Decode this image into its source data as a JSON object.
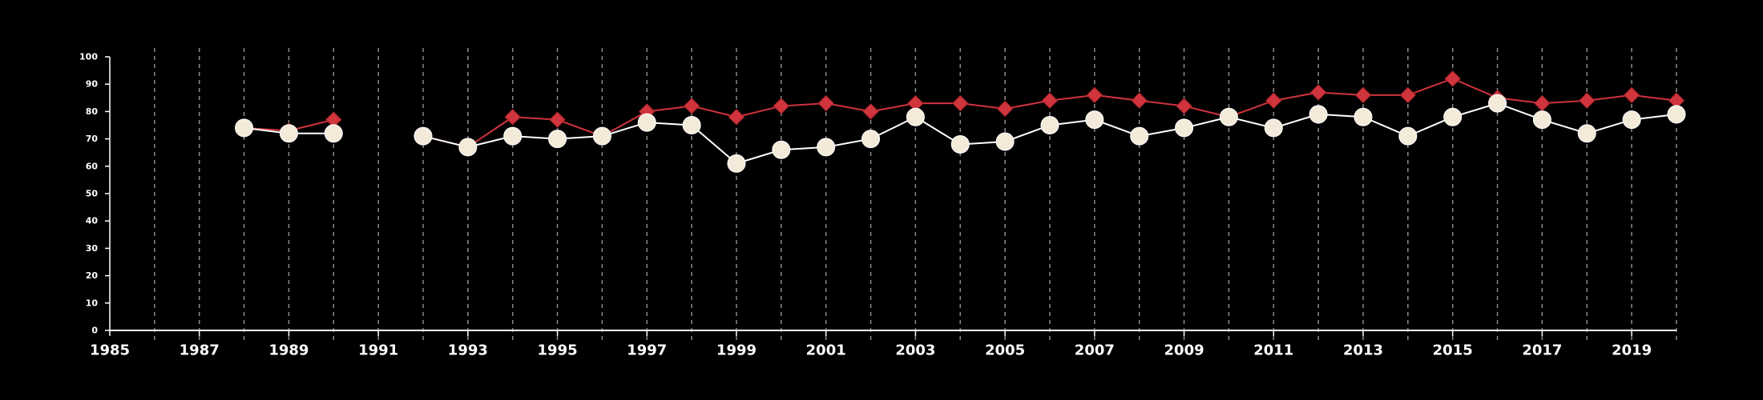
{
  "chart_data": {
    "type": "line",
    "title": "",
    "xlabel": "",
    "ylabel": "",
    "xlim": [
      1985,
      2020
    ],
    "ylim": [
      0,
      100
    ],
    "x_ticks": [
      1985,
      1987,
      1989,
      1991,
      1993,
      1995,
      1997,
      1999,
      2001,
      2003,
      2005,
      2007,
      2009,
      2011,
      2013,
      2015,
      2017,
      2019
    ],
    "x_tick_labels": [
      "1985",
      "1987",
      "1989",
      "1991",
      "1993",
      "1995",
      "1997",
      "1999",
      "2001",
      "2003",
      "2005",
      "2007",
      "2009",
      "2011",
      "2013",
      "2015",
      "2017",
      "2019"
    ],
    "y_ticks": [
      0,
      10,
      20,
      30,
      40,
      50,
      60,
      70,
      80,
      90,
      100
    ],
    "y_tick_labels": [
      "0",
      "10",
      "20",
      "30",
      "40",
      "50",
      "60",
      "70",
      "80",
      "90",
      "100"
    ],
    "vertical_grid": "dashed",
    "background": "#000000",
    "axis_color": "#ffffff",
    "x": [
      1988,
      1989,
      1990,
      1991,
      1992,
      1993,
      1994,
      1995,
      1996,
      1997,
      1998,
      1999,
      2000,
      2001,
      2002,
      2003,
      2004,
      2005,
      2006,
      2007,
      2008,
      2009,
      2010,
      2011,
      2012,
      2013,
      2014,
      2015,
      2016,
      2017,
      2018,
      2019,
      2020
    ],
    "series": [
      {
        "marker": "circle",
        "color": "#ffffff",
        "marker_fill": "#f3ead9",
        "values": [
          74,
          72,
          72,
          null,
          71,
          67,
          71,
          70,
          71,
          76,
          75,
          61,
          66,
          67,
          70,
          78,
          68,
          69,
          75,
          77,
          71,
          74,
          78,
          74,
          79,
          78,
          71,
          78,
          83,
          77,
          72,
          77,
          79
        ]
      },
      {
        "marker": "diamond",
        "color": "#d0343c",
        "values": [
          74,
          73,
          77,
          null,
          71,
          67,
          78,
          77,
          71,
          80,
          82,
          78,
          82,
          83,
          80,
          83,
          83,
          81,
          84,
          86,
          84,
          82,
          78,
          84,
          87,
          86,
          86,
          92,
          85,
          83,
          84,
          86,
          84
        ]
      }
    ]
  }
}
